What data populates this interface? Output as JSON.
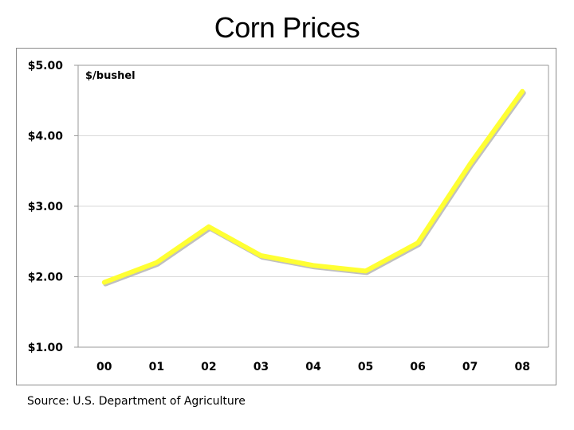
{
  "chart_data": {
    "type": "line",
    "title": "Corn Prices",
    "unit_label": "$/bushel",
    "source": "Source: U.S. Department of Agriculture",
    "categories": [
      "00",
      "01",
      "02",
      "03",
      "04",
      "05",
      "06",
      "07",
      "08"
    ],
    "y_tick_labels": [
      "$1.00",
      "$2.00",
      "$3.00",
      "$4.00",
      "$5.00"
    ],
    "y_tick_values": [
      1,
      2,
      3,
      4,
      5
    ],
    "ylim": [
      1,
      5
    ],
    "series": [
      {
        "values": [
          1.92,
          2.2,
          2.71,
          2.3,
          2.16,
          2.08,
          2.48,
          3.6,
          4.63
        ]
      }
    ],
    "line_color": "#ffff33",
    "line_shadow_color": "#b0b0b0",
    "grid": true,
    "grid_color": "#d9d9d9"
  }
}
